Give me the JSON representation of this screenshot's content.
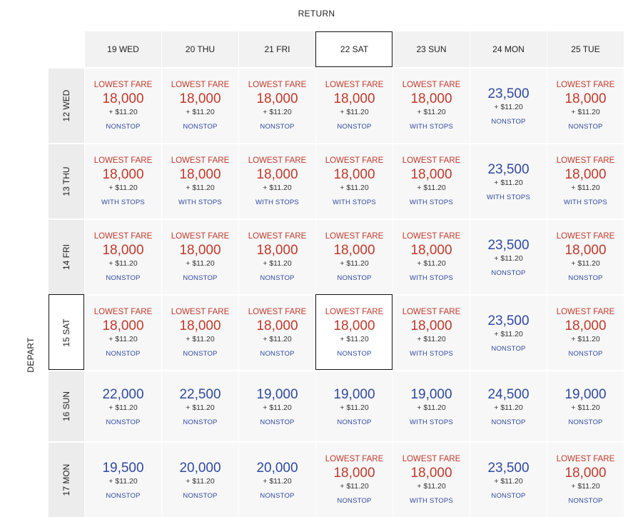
{
  "return_label": "RETURN",
  "depart_label": "DEPART",
  "return_days": [
    "19 WED",
    "20 THU",
    "21 FRI",
    "22 SAT",
    "23 SUN",
    "24 MON",
    "25 TUE"
  ],
  "depart_days": [
    "12 WED",
    "13 THU",
    "14 FRI",
    "15 SAT",
    "16 SUN",
    "17 MON"
  ],
  "selected": {
    "depart": "15 SAT",
    "return": "22 SAT"
  },
  "colors": {
    "lowest_fare": "#c0392b",
    "standard_fare": "#2f4aa0"
  },
  "rows": [
    {
      "cells": [
        {
          "badge": "LOWEST FARE",
          "price": "18,000",
          "tax": "+ $11.20",
          "stops": "NONSTOP"
        },
        {
          "badge": "LOWEST FARE",
          "price": "18,000",
          "tax": "+ $11.20",
          "stops": "NONSTOP"
        },
        {
          "badge": "LOWEST FARE",
          "price": "18,000",
          "tax": "+ $11.20",
          "stops": "NONSTOP"
        },
        {
          "badge": "LOWEST FARE",
          "price": "18,000",
          "tax": "+ $11.20",
          "stops": "NONSTOP"
        },
        {
          "badge": "LOWEST FARE",
          "price": "18,000",
          "tax": "+ $11.20",
          "stops": "WITH STOPS"
        },
        {
          "badge": "",
          "price": "23,500",
          "tax": "+ $11.20",
          "stops": "NONSTOP"
        },
        {
          "badge": "LOWEST FARE",
          "price": "18,000",
          "tax": "+ $11.20",
          "stops": "NONSTOP"
        }
      ]
    },
    {
      "cells": [
        {
          "badge": "LOWEST FARE",
          "price": "18,000",
          "tax": "+ $11.20",
          "stops": "WITH STOPS"
        },
        {
          "badge": "LOWEST FARE",
          "price": "18,000",
          "tax": "+ $11.20",
          "stops": "WITH STOPS"
        },
        {
          "badge": "LOWEST FARE",
          "price": "18,000",
          "tax": "+ $11.20",
          "stops": "WITH STOPS"
        },
        {
          "badge": "LOWEST FARE",
          "price": "18,000",
          "tax": "+ $11.20",
          "stops": "WITH STOPS"
        },
        {
          "badge": "LOWEST FARE",
          "price": "18,000",
          "tax": "+ $11.20",
          "stops": "WITH STOPS"
        },
        {
          "badge": "",
          "price": "23,500",
          "tax": "+ $11.20",
          "stops": "WITH STOPS"
        },
        {
          "badge": "LOWEST FARE",
          "price": "18,000",
          "tax": "+ $11.20",
          "stops": "WITH STOPS"
        }
      ]
    },
    {
      "cells": [
        {
          "badge": "LOWEST FARE",
          "price": "18,000",
          "tax": "+ $11.20",
          "stops": "NONSTOP"
        },
        {
          "badge": "LOWEST FARE",
          "price": "18,000",
          "tax": "+ $11.20",
          "stops": "NONSTOP"
        },
        {
          "badge": "LOWEST FARE",
          "price": "18,000",
          "tax": "+ $11.20",
          "stops": "NONSTOP"
        },
        {
          "badge": "LOWEST FARE",
          "price": "18,000",
          "tax": "+ $11.20",
          "stops": "NONSTOP"
        },
        {
          "badge": "LOWEST FARE",
          "price": "18,000",
          "tax": "+ $11.20",
          "stops": "WITH STOPS"
        },
        {
          "badge": "",
          "price": "23,500",
          "tax": "+ $11.20",
          "stops": "NONSTOP"
        },
        {
          "badge": "LOWEST FARE",
          "price": "18,000",
          "tax": "+ $11.20",
          "stops": "NONSTOP"
        }
      ]
    },
    {
      "cells": [
        {
          "badge": "LOWEST FARE",
          "price": "18,000",
          "tax": "+ $11.20",
          "stops": "NONSTOP"
        },
        {
          "badge": "LOWEST FARE",
          "price": "18,000",
          "tax": "+ $11.20",
          "stops": "NONSTOP"
        },
        {
          "badge": "LOWEST FARE",
          "price": "18,000",
          "tax": "+ $11.20",
          "stops": "NONSTOP"
        },
        {
          "badge": "LOWEST FARE",
          "price": "18,000",
          "tax": "+ $11.20",
          "stops": "NONSTOP"
        },
        {
          "badge": "LOWEST FARE",
          "price": "18,000",
          "tax": "+ $11.20",
          "stops": "WITH STOPS"
        },
        {
          "badge": "",
          "price": "23,500",
          "tax": "+ $11.20",
          "stops": "NONSTOP"
        },
        {
          "badge": "LOWEST FARE",
          "price": "18,000",
          "tax": "+ $11.20",
          "stops": "NONSTOP"
        }
      ]
    },
    {
      "cells": [
        {
          "badge": "",
          "price": "22,000",
          "tax": "+ $11.20",
          "stops": "NONSTOP"
        },
        {
          "badge": "",
          "price": "22,500",
          "tax": "+ $11.20",
          "stops": "NONSTOP"
        },
        {
          "badge": "",
          "price": "19,000",
          "tax": "+ $11.20",
          "stops": "NONSTOP"
        },
        {
          "badge": "",
          "price": "19,000",
          "tax": "+ $11.20",
          "stops": "NONSTOP"
        },
        {
          "badge": "",
          "price": "19,000",
          "tax": "+ $11.20",
          "stops": "WITH STOPS"
        },
        {
          "badge": "",
          "price": "24,500",
          "tax": "+ $11.20",
          "stops": "NONSTOP"
        },
        {
          "badge": "",
          "price": "19,000",
          "tax": "+ $11.20",
          "stops": "NONSTOP"
        }
      ]
    },
    {
      "cells": [
        {
          "badge": "",
          "price": "19,500",
          "tax": "+ $11.20",
          "stops": "NONSTOP"
        },
        {
          "badge": "",
          "price": "20,000",
          "tax": "+ $11.20",
          "stops": "NONSTOP"
        },
        {
          "badge": "",
          "price": "20,000",
          "tax": "+ $11.20",
          "stops": "NONSTOP"
        },
        {
          "badge": "LOWEST FARE",
          "price": "18,000",
          "tax": "+ $11.20",
          "stops": "NONSTOP"
        },
        {
          "badge": "LOWEST FARE",
          "price": "18,000",
          "tax": "+ $11.20",
          "stops": "WITH STOPS"
        },
        {
          "badge": "",
          "price": "23,500",
          "tax": "+ $11.20",
          "stops": "NONSTOP"
        },
        {
          "badge": "LOWEST FARE",
          "price": "18,000",
          "tax": "+ $11.20",
          "stops": "NONSTOP"
        }
      ]
    }
  ]
}
